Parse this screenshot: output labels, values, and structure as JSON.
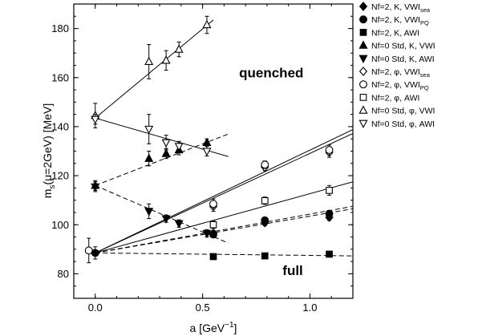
{
  "chart_data": {
    "type": "scatter",
    "xlabel": "a [GeV",
    "xlabel_sup": "−1",
    "xlabel_end": "]",
    "ylabel": "m",
    "ylabel_sub": "s",
    "ylabel_rest": "(μ=2GeV)  [MeV]",
    "xlim": [
      -0.1,
      1.2
    ],
    "ylim": [
      70,
      190
    ],
    "xticks": [
      {
        "value": 0.0,
        "label": "0.0"
      },
      {
        "value": 0.5,
        "label": "0.5"
      },
      {
        "value": 1.0,
        "label": "1.0"
      }
    ],
    "yticks": [
      {
        "value": 80,
        "label": "80"
      },
      {
        "value": 100,
        "label": "100"
      },
      {
        "value": 120,
        "label": "120"
      },
      {
        "value": 140,
        "label": "140"
      },
      {
        "value": 160,
        "label": "160"
      },
      {
        "value": 180,
        "label": "180"
      }
    ],
    "annotations": [
      {
        "text": "quenched",
        "x": 0.82,
        "y": 162
      },
      {
        "text": "full",
        "x": 0.92,
        "y": 81.5
      }
    ],
    "series": [
      {
        "name": "Nf=2, K, VWI",
        "name_sub": "sea",
        "marker": "diamond-filled",
        "points": [
          {
            "x": 0.55,
            "y": 96.5,
            "err": 1.2
          },
          {
            "x": 0.79,
            "y": 100.8,
            "err": 1.2
          },
          {
            "x": 1.09,
            "y": 103.0,
            "err": 1.2
          }
        ]
      },
      {
        "name": "Nf=2, K, VWI",
        "name_sub": "PQ",
        "marker": "circle-filled",
        "points": [
          {
            "x": 0.55,
            "y": 96.0,
            "err": 1.2
          },
          {
            "x": 0.79,
            "y": 101.8,
            "err": 1.2
          },
          {
            "x": 1.09,
            "y": 104.5,
            "err": 1.2
          }
        ]
      },
      {
        "name": "Nf=2, K, AWI",
        "name_sub": "",
        "marker": "square-filled",
        "points": [
          {
            "x": 0.55,
            "y": 87.0,
            "err": 1.0
          },
          {
            "x": 0.79,
            "y": 87.3,
            "err": 1.0
          },
          {
            "x": 1.09,
            "y": 88.0,
            "err": 1.0
          }
        ]
      },
      {
        "name": "Nf=0 Std, K, VWI",
        "name_sub": "",
        "marker": "triangle-up-filled",
        "points": [
          {
            "x": 0.0,
            "y": 116.0,
            "err": 2.0
          },
          {
            "x": 0.25,
            "y": 127.0,
            "err": 3.0
          },
          {
            "x": 0.33,
            "y": 129.0,
            "err": 2.0
          },
          {
            "x": 0.39,
            "y": 130.5,
            "err": 2.0
          },
          {
            "x": 0.52,
            "y": 133.5,
            "err": 1.5
          }
        ]
      },
      {
        "name": "Nf=0 Std, K, AWI",
        "name_sub": "",
        "marker": "triangle-down-filled",
        "points": [
          {
            "x": 0.0,
            "y": 115.5,
            "err": 2.0
          },
          {
            "x": 0.25,
            "y": 105.5,
            "err": 3.0
          },
          {
            "x": 0.33,
            "y": 102.5,
            "err": 1.5
          },
          {
            "x": 0.39,
            "y": 100.5,
            "err": 1.5
          },
          {
            "x": 0.52,
            "y": 96.5,
            "err": 1.5
          }
        ]
      },
      {
        "name": "Nf=2, φ, VWI",
        "name_sub": "sea",
        "marker": "diamond-open",
        "points": [
          {
            "x": 0.55,
            "y": 107.5,
            "err": 2.0
          },
          {
            "x": 0.79,
            "y": 123.5,
            "err": 1.5
          },
          {
            "x": 1.09,
            "y": 129.5,
            "err": 2.0
          }
        ]
      },
      {
        "name": "Nf=2, φ, VWI",
        "name_sub": "PQ",
        "marker": "circle-open",
        "points": [
          {
            "x": -0.03,
            "y": 89.5,
            "err": 5.0
          },
          {
            "x": 0.55,
            "y": 108.5,
            "err": 2.0
          },
          {
            "x": 0.79,
            "y": 124.5,
            "err": 1.5
          },
          {
            "x": 1.09,
            "y": 130.5,
            "err": 2.0
          }
        ]
      },
      {
        "name": "Nf=2, φ, AWI",
        "name_sub": "",
        "marker": "square-open",
        "points": [
          {
            "x": 0.55,
            "y": 100.0,
            "err": 1.5
          },
          {
            "x": 0.79,
            "y": 109.8,
            "err": 1.5
          },
          {
            "x": 1.09,
            "y": 114.0,
            "err": 2.0
          }
        ]
      },
      {
        "name": "Nf=0 Std, φ, VWI",
        "name_sub": "",
        "marker": "triangle-up-open",
        "points": [
          {
            "x": 0.0,
            "y": 144.5,
            "err": 5.0
          },
          {
            "x": 0.25,
            "y": 166.5,
            "err": 7.0
          },
          {
            "x": 0.33,
            "y": 167.0,
            "err": 4.0
          },
          {
            "x": 0.39,
            "y": 171.5,
            "err": 3.0
          },
          {
            "x": 0.52,
            "y": 181.5,
            "err": 3.5
          }
        ]
      },
      {
        "name": "Nf=0 Std, φ, AWI",
        "name_sub": "",
        "marker": "triangle-down-open",
        "points": [
          {
            "x": 0.0,
            "y": 143.0,
            "err": 2.0
          },
          {
            "x": 0.25,
            "y": 139.0,
            "err": 6.0
          },
          {
            "x": 0.33,
            "y": 133.5,
            "err": 3.0
          },
          {
            "x": 0.39,
            "y": 132.0,
            "err": 2.0
          },
          {
            "x": 0.52,
            "y": 130.0,
            "err": 2.0
          }
        ]
      }
    ],
    "fit_lines": [
      {
        "x": [
          0.0,
          0.55
        ],
        "y": [
          143.5,
          183.5
        ],
        "style": "solid"
      },
      {
        "x": [
          0.0,
          0.62
        ],
        "y": [
          143.5,
          127.8
        ],
        "style": "solid"
      },
      {
        "x": [
          0.0,
          0.62
        ],
        "y": [
          116.0,
          137.0
        ],
        "style": "dashed"
      },
      {
        "x": [
          0.0,
          0.62
        ],
        "y": [
          116.0,
          92.5
        ],
        "style": "dashed"
      },
      {
        "x": [
          0.0,
          1.2
        ],
        "y": [
          88.5,
          138.8
        ],
        "style": "solid"
      },
      {
        "x": [
          0.0,
          1.2
        ],
        "y": [
          88.5,
          137.2
        ],
        "style": "solid"
      },
      {
        "x": [
          0.0,
          1.2
        ],
        "y": [
          88.5,
          117.5
        ],
        "style": "solid"
      },
      {
        "x": [
          0.0,
          1.2
        ],
        "y": [
          88.5,
          107.5
        ],
        "style": "dashed"
      },
      {
        "x": [
          0.0,
          1.2
        ],
        "y": [
          88.5,
          106.5
        ],
        "style": "dashed"
      },
      {
        "x": [
          0.0,
          1.2
        ],
        "y": [
          88.5,
          87.3
        ],
        "style": "dashed"
      }
    ],
    "extrapolated_points": [
      {
        "x": 0.0,
        "y": 88.5,
        "err": 2.5,
        "marker": "circle-filled"
      }
    ],
    "legend_position": "right"
  }
}
